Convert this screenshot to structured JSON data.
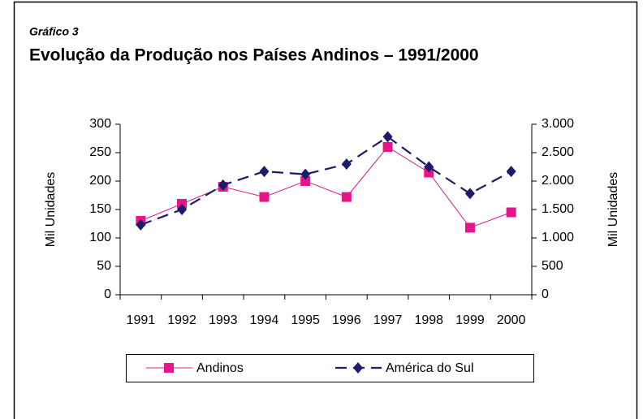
{
  "chart_data": {
    "type": "line",
    "figure_label": "Gráfico 3",
    "title": "Evolução da Produção nos Países Andinos – 1991/2000",
    "categories": [
      "1991",
      "1992",
      "1993",
      "1994",
      "1995",
      "1996",
      "1997",
      "1998",
      "1999",
      "2000"
    ],
    "series": [
      {
        "name": "Andinos",
        "color": "#e8158a",
        "marker": "square",
        "line_style": "solid",
        "values": [
          130,
          160,
          190,
          172,
          200,
          172,
          260,
          215,
          118,
          145
        ]
      },
      {
        "name": "América do Sul",
        "color": "#1c1c6b",
        "marker": "diamond",
        "line_style": "dashed",
        "axis": "y2",
        "values": [
          1230,
          1500,
          1930,
          2170,
          2120,
          2300,
          2780,
          2250,
          1780,
          2170
        ]
      }
    ],
    "ylabel": "Mil Unidades",
    "y2label": "Mil Unidades",
    "ylim": [
      0,
      300
    ],
    "yticks": [
      0,
      50,
      100,
      150,
      200,
      250,
      300
    ],
    "y2lim": [
      0,
      3000
    ],
    "y2ticks": [
      0,
      500,
      {
        "value": 1000,
        "label": "1.000"
      },
      {
        "value": 1500,
        "label": "1.500"
      },
      {
        "value": 2000,
        "label": "2.000"
      },
      {
        "value": 2500,
        "label": "2.500"
      },
      {
        "value": 3000,
        "label": "3.000"
      }
    ],
    "legend": "bottom",
    "grid": false
  }
}
